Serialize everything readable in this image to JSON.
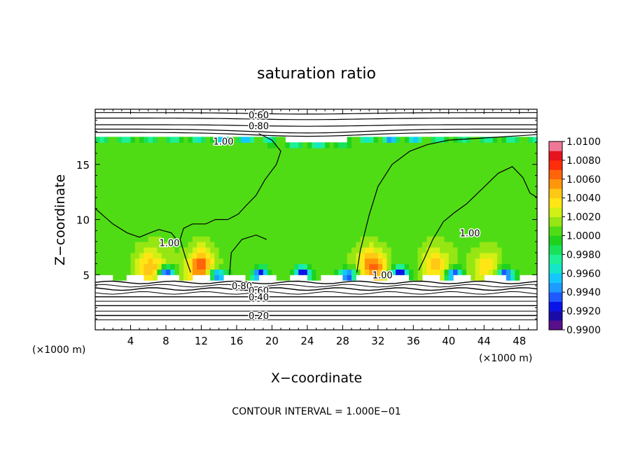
{
  "chart_data": {
    "type": "heatmap",
    "title": "saturation ratio",
    "xlabel": "X−coordinate",
    "ylabel": "Z−coordinate",
    "x_unit_left": "(×1000 m)",
    "x_unit_right": "(×1000 m)",
    "footer": "CONTOUR INTERVAL = 1.000E−01",
    "xlim": [
      0,
      50
    ],
    "ylim": [
      0,
      20
    ],
    "x_ticks": [
      4,
      8,
      12,
      16,
      20,
      24,
      28,
      32,
      36,
      40,
      44,
      48
    ],
    "y_ticks": [
      5,
      10,
      15
    ],
    "colorbar": {
      "min": 0.99,
      "max": 1.01,
      "labels": [
        "1.0100",
        "1.0080",
        "1.0060",
        "1.0040",
        "1.0020",
        "1.0000",
        "0.9980",
        "0.9960",
        "0.9940",
        "0.9920",
        "0.9900"
      ],
      "bins": [
        {
          "lo": 0.99,
          "color": "#5a0f8a"
        },
        {
          "lo": 0.991,
          "color": "#1a0aa8"
        },
        {
          "lo": 0.992,
          "color": "#0a14e8"
        },
        {
          "lo": 0.993,
          "color": "#1e5aff"
        },
        {
          "lo": 0.994,
          "color": "#1e9bff"
        },
        {
          "lo": 0.995,
          "color": "#14c8ff"
        },
        {
          "lo": 0.996,
          "color": "#14e6c8"
        },
        {
          "lo": 0.997,
          "color": "#1ef096"
        },
        {
          "lo": 0.998,
          "color": "#19e15a"
        },
        {
          "lo": 0.999,
          "color": "#1ed21e"
        },
        {
          "lo": 1.0,
          "color": "#50dc14"
        },
        {
          "lo": 1.001,
          "color": "#96e614"
        },
        {
          "lo": 1.002,
          "color": "#d2f014"
        },
        {
          "lo": 1.003,
          "color": "#ffe614"
        },
        {
          "lo": 1.004,
          "color": "#ffc814"
        },
        {
          "lo": 1.005,
          "color": "#ff960a"
        },
        {
          "lo": 1.006,
          "color": "#ff640a"
        },
        {
          "lo": 1.007,
          "color": "#ff2d0a"
        },
        {
          "lo": 1.008,
          "color": "#e6141e"
        },
        {
          "lo": 1.009,
          "color": "#f07896"
        }
      ]
    },
    "contour_labels": [
      {
        "text": "0.60",
        "x": 18.5,
        "z": 19.5
      },
      {
        "text": "0.80",
        "x": 18.5,
        "z": 18.5
      },
      {
        "text": "1.00",
        "x": 14.5,
        "z": 17.1
      },
      {
        "text": "1.00",
        "x": 8.4,
        "z": 7.9
      },
      {
        "text": "1.00",
        "x": 32.5,
        "z": 5.0
      },
      {
        "text": "1.00",
        "x": 42.4,
        "z": 8.8
      },
      {
        "text": "0.80",
        "x": 16.6,
        "z": 4.0
      },
      {
        "text": "0.60",
        "x": 18.5,
        "z": 3.6
      },
      {
        "text": "0.40",
        "x": 18.5,
        "z": 3.0
      },
      {
        "text": "0.20",
        "x": 18.5,
        "z": 1.3
      }
    ],
    "cloud_top_z": 17.7,
    "cloud_base_z": 4.8,
    "updrafts": [
      {
        "x": 12.0,
        "peak": 1.0068
      },
      {
        "x": 31.5,
        "peak": 1.0064
      },
      {
        "x": 6.2,
        "peak": 1.0045
      },
      {
        "x": 38.5,
        "peak": 1.0042
      },
      {
        "x": 44.2,
        "peak": 1.004
      }
    ]
  }
}
